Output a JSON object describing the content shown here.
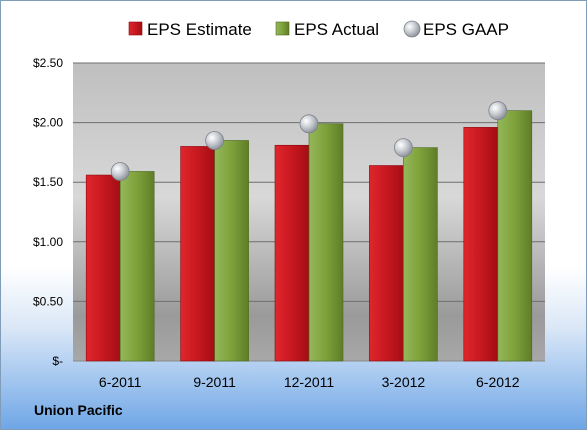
{
  "footer": {
    "company": "Union Pacific"
  },
  "chart_data": {
    "type": "bar",
    "categories": [
      "6-2011",
      "9-2011",
      "12-2011",
      "3-2012",
      "6-2012"
    ],
    "series": [
      {
        "name": "EPS Estimate",
        "kind": "bar",
        "color": "#c0141b",
        "values": [
          1.56,
          1.8,
          1.81,
          1.64,
          1.96
        ]
      },
      {
        "name": "EPS Actual",
        "kind": "bar",
        "color": "#7ea13a",
        "values": [
          1.59,
          1.85,
          1.99,
          1.79,
          2.1
        ]
      },
      {
        "name": "EPS GAAP",
        "kind": "marker",
        "color": "#b8bcc2",
        "values": [
          1.59,
          1.85,
          1.99,
          1.79,
          2.1
        ]
      }
    ],
    "yticks": [
      "$-",
      "$0.50",
      "$1.00",
      "$1.50",
      "$2.00",
      "$2.50"
    ],
    "ylim": [
      0,
      2.5
    ],
    "grid": true,
    "legend_position": "top"
  }
}
